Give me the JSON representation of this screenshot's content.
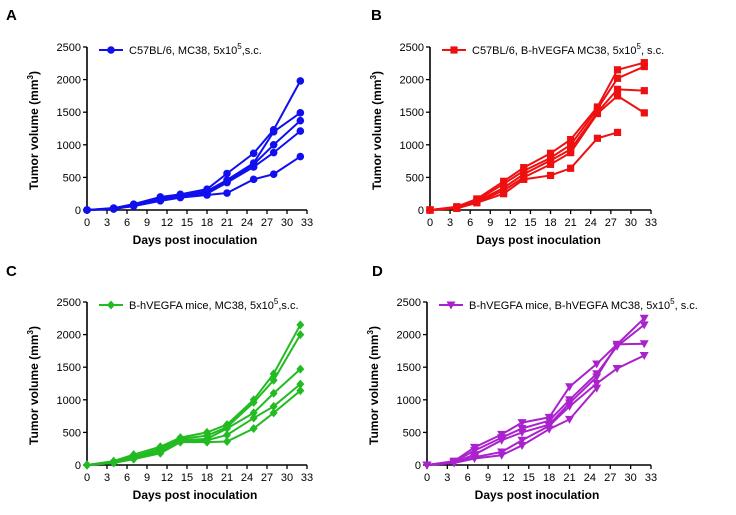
{
  "chart_data": [
    {
      "panel": "A",
      "type": "line",
      "color": "#1010ee",
      "marker": "circle",
      "xlabel": "Days post inoculation",
      "ylabel_main": "Tumor volume (mm",
      "ylabel_sup": "3",
      "ylabel_end": ")",
      "xlim": [
        0,
        33
      ],
      "ylim": [
        0,
        2500
      ],
      "xticks": [
        0,
        3,
        6,
        9,
        12,
        15,
        18,
        21,
        24,
        27,
        30,
        33
      ],
      "yticks": [
        0,
        500,
        1000,
        1500,
        2000,
        2500
      ],
      "legend": {
        "pre": "C57BL/6,  MC38, 5x10",
        "sup": "5",
        "post": ",s.c."
      },
      "x": [
        0,
        4,
        7,
        11,
        14,
        18,
        21,
        25,
        28,
        32
      ],
      "series": [
        {
          "values": [
            0,
            30,
            90,
            200,
            240,
            320,
            560,
            870,
            1230,
            1980
          ]
        },
        {
          "values": [
            0,
            25,
            80,
            180,
            230,
            290,
            460,
            720,
            1200,
            1490
          ]
        },
        {
          "values": [
            0,
            20,
            70,
            160,
            210,
            270,
            430,
            700,
            1000,
            1370
          ]
        },
        {
          "values": [
            0,
            22,
            75,
            150,
            200,
            250,
            420,
            660,
            880,
            1210
          ]
        },
        {
          "values": [
            0,
            15,
            60,
            140,
            190,
            230,
            260,
            470,
            550,
            820
          ]
        }
      ]
    },
    {
      "panel": "B",
      "type": "line",
      "color": "#ee1010",
      "marker": "square",
      "xlabel": "Days post inoculation",
      "ylabel_main": "Tumor volume (mm",
      "ylabel_sup": "3",
      "ylabel_end": ")",
      "xlim": [
        0,
        33
      ],
      "ylim": [
        0,
        2500
      ],
      "xticks": [
        0,
        3,
        6,
        9,
        12,
        15,
        18,
        21,
        24,
        27,
        30,
        33
      ],
      "yticks": [
        0,
        500,
        1000,
        1500,
        2000,
        2500
      ],
      "legend": {
        "pre": "C57BL/6, B-hVEGFA MC38, 5x10",
        "sup": "5",
        "post": ", s.c."
      },
      "x": [
        0,
        4,
        7,
        11,
        14,
        18,
        21,
        25,
        28,
        32
      ],
      "series": [
        {
          "values": [
            0,
            50,
            170,
            440,
            650,
            870,
            1080,
            1580,
            2150,
            2260
          ]
        },
        {
          "values": [
            0,
            40,
            150,
            400,
            600,
            800,
            1000,
            1550,
            2020,
            2200
          ]
        },
        {
          "values": [
            0,
            35,
            130,
            340,
            550,
            760,
            930,
            1500,
            1850,
            1830
          ]
        },
        {
          "values": [
            0,
            30,
            120,
            300,
            500,
            700,
            880,
            1480,
            1750,
            1490
          ]
        },
        {
          "values": [
            0,
            25,
            110,
            250,
            470,
            530,
            640,
            1100,
            1190,
            null
          ]
        }
      ]
    },
    {
      "panel": "C",
      "type": "line",
      "color": "#22bb22",
      "marker": "diamond",
      "xlabel": "Days post inoculation",
      "ylabel_main": "Tumor volume (mm",
      "ylabel_sup": "3",
      "ylabel_end": ")",
      "xlim": [
        0,
        33
      ],
      "ylim": [
        0,
        2500
      ],
      "xticks": [
        0,
        3,
        6,
        9,
        12,
        15,
        18,
        21,
        24,
        27,
        30,
        33
      ],
      "yticks": [
        0,
        500,
        1000,
        1500,
        2000,
        2500
      ],
      "legend": {
        "pre": "B-hVEGFA mice, MC38, 5x10",
        "sup": "5",
        "post": ",s.c."
      },
      "x": [
        0,
        4,
        7,
        11,
        14,
        18,
        21,
        25,
        28,
        32
      ],
      "series": [
        {
          "values": [
            0,
            60,
            160,
            280,
            420,
            500,
            620,
            1000,
            1400,
            2150
          ]
        },
        {
          "values": [
            0,
            50,
            130,
            250,
            400,
            450,
            580,
            960,
            1300,
            2000
          ]
        },
        {
          "values": [
            0,
            40,
            110,
            220,
            380,
            400,
            560,
            800,
            1100,
            1470
          ]
        },
        {
          "values": [
            0,
            35,
            100,
            200,
            360,
            380,
            460,
            720,
            900,
            1240
          ]
        },
        {
          "values": [
            0,
            30,
            90,
            180,
            350,
            350,
            360,
            560,
            800,
            1140
          ]
        }
      ]
    },
    {
      "panel": "D",
      "type": "line",
      "color": "#aa22cc",
      "marker": "triangle-down",
      "xlabel": "Days post inoculation",
      "ylabel_main": "Tumor volume (mm",
      "ylabel_sup": "3",
      "ylabel_end": ")",
      "xlim": [
        0,
        33
      ],
      "ylim": [
        0,
        2500
      ],
      "xticks": [
        0,
        3,
        6,
        9,
        12,
        15,
        18,
        21,
        24,
        27,
        30,
        33
      ],
      "yticks": [
        0,
        500,
        1000,
        1500,
        2000,
        2500
      ],
      "legend": {
        "pre": "B-hVEGFA mice,  B-hVEGFA MC38, 5x10",
        "sup": "5",
        "post": ", s.c."
      },
      "x": [
        0,
        4,
        7,
        11,
        14,
        18,
        21,
        25,
        28,
        32
      ],
      "series": [
        {
          "values": [
            0,
            60,
            270,
            470,
            650,
            730,
            1200,
            1550,
            1850,
            2250
          ]
        },
        {
          "values": [
            0,
            50,
            220,
            420,
            560,
            680,
            1000,
            1400,
            1820,
            2150
          ]
        },
        {
          "values": [
            0,
            40,
            160,
            380,
            500,
            620,
            950,
            1350,
            1850,
            1860
          ]
        },
        {
          "values": [
            0,
            35,
            120,
            200,
            380,
            600,
            900,
            1250,
            1480,
            1680
          ]
        },
        {
          "values": [
            0,
            30,
            100,
            150,
            300,
            550,
            700,
            1180,
            null,
            null
          ]
        }
      ]
    }
  ]
}
